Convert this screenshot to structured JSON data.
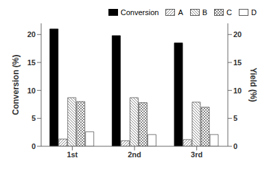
{
  "chart_data": {
    "type": "bar",
    "categories": [
      "1st",
      "2nd",
      "3rd"
    ],
    "series": [
      {
        "name": "Conversion",
        "color": "#000000",
        "values": [
          21.0,
          19.8,
          18.5
        ]
      },
      {
        "name": "A",
        "color": "#ffffff",
        "axis": "y2",
        "values": [
          1.3,
          1.0,
          1.2
        ]
      },
      {
        "name": "B",
        "color": "#ffffff",
        "axis": "y2",
        "values": [
          8.7,
          8.7,
          7.9
        ]
      },
      {
        "name": "C",
        "color": "#ffffff",
        "axis": "y2",
        "values": [
          8.0,
          7.8,
          7.0
        ]
      },
      {
        "name": "D",
        "color": "#ffffff",
        "axis": "y2",
        "values": [
          2.6,
          2.1,
          2.1
        ]
      }
    ],
    "ylabel": "Conversion (%)",
    "y2label": "Yield (%)",
    "ylim": [
      0,
      22
    ],
    "yticks": [
      0,
      5,
      10,
      15,
      20
    ],
    "y2lim": [
      0,
      22
    ],
    "y2ticks": [
      0,
      5,
      10,
      15,
      20
    ],
    "grid": false,
    "legend": "upper right"
  }
}
